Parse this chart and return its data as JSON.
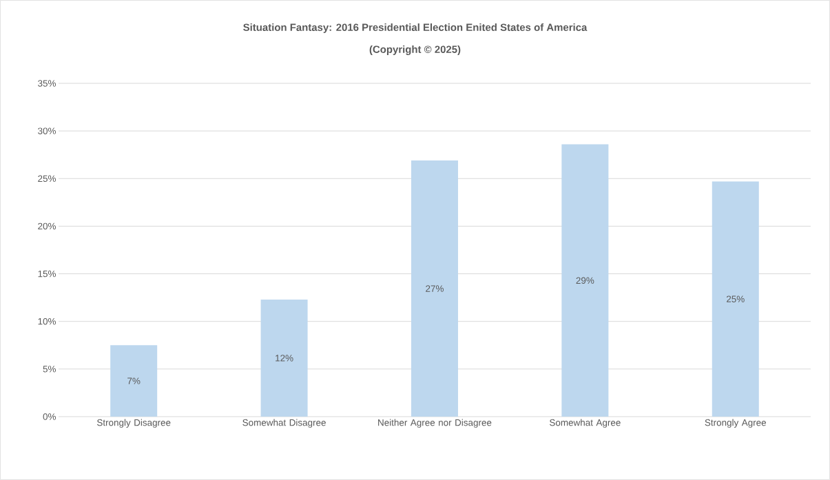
{
  "chart_data": {
    "type": "bar",
    "title": "Situation Fantasy: 2016 Presidential Election Enited States of America",
    "subtitle": "(Copyright © 2025)",
    "categories": [
      "Strongly Disagree",
      "Somewhat Disagree",
      "Neither Agree nor Disagree",
      "Somewhat Agree",
      "Strongly Agree"
    ],
    "values": [
      7.5,
      12.3,
      26.9,
      28.6,
      24.7
    ],
    "value_labels": [
      "7%",
      "12%",
      "27%",
      "29%",
      "25%"
    ],
    "color": "#bdd7ee",
    "ylim": [
      0,
      35
    ],
    "yticks": [
      {
        "value": 0,
        "label": "0%"
      },
      {
        "value": 5,
        "label": "5%"
      },
      {
        "value": 10,
        "label": "10%"
      },
      {
        "value": 15,
        "label": "15%"
      },
      {
        "value": 20,
        "label": "20%"
      },
      {
        "value": 25,
        "label": "25%"
      },
      {
        "value": 30,
        "label": "30%"
      },
      {
        "value": 35,
        "label": "35%"
      }
    ],
    "grid": "y"
  }
}
